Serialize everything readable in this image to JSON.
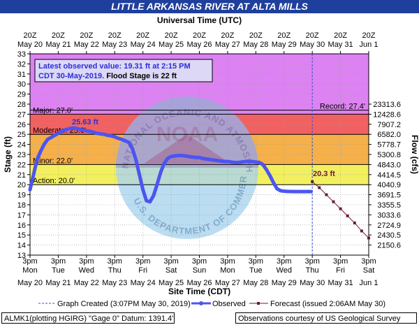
{
  "title": "LITTLE ARKANSAS RIVER AT ALTA MILLS",
  "top_axis_title": "Universal Time (UTC)",
  "bottom_axis_title": "Site Time (CDT)",
  "y_left_title": "Stage (ft)",
  "y_right_title": "Flow (cfs)",
  "info_box": {
    "line1": "Latest observed value: 19.31 ft at 2:15 PM",
    "line2": "CDT 30-May-2019.",
    "line2b": "Flood Stage is 22 ft"
  },
  "watermark_text_top": "NATIONAL OCEANIC AND ATMOSPHERIC ADMINISTRATION",
  "watermark_text_bottom": "U.S. DEPARTMENT OF COMMERCE",
  "watermark_logo_text": "NOAA",
  "thresholds": {
    "major": {
      "label": "Major: 27.0'",
      "value": 27.0
    },
    "moderate": {
      "label": "Moderate: 25.0'",
      "value": 25.0
    },
    "minor": {
      "label": "Minor: 22.0'",
      "value": 22.0
    },
    "action": {
      "label": "Action: 20.0'",
      "value": 20.0
    },
    "record": {
      "label": "Record: 27.4'",
      "value": 27.4
    }
  },
  "annotations": {
    "peak_label": "25.63 ft",
    "forecast_label": "20.3 ft"
  },
  "legend": {
    "graph_created": "Graph Created (3:07PM May 30, 2019)",
    "observed": "Observed",
    "forecast": "Forecast (issued 2:06AM May 30)"
  },
  "footer": {
    "left": "ALMK1(plotting HGIRG) \"Gage 0\" Datum: 1391.4'",
    "right": "Observations courtesy of US Geological Survey"
  },
  "colors": {
    "title_bg": "#1f3f9c",
    "major_band": "#dd82f2",
    "moderate_band": "#f26161",
    "minor_band": "#f5b04a",
    "action_band": "#f3f05f",
    "observed": "#4c55f0",
    "forecast": "#6a1b3f",
    "annotation_blue": "#2b2fd8",
    "annotation_forecast": "#6a1b3f"
  },
  "chart_data": {
    "type": "line",
    "y_ticks": [
      "13",
      "14",
      "15",
      "16",
      "17",
      "18",
      "19",
      "20",
      "21",
      "22",
      "23",
      "24",
      "25",
      "26",
      "27",
      "28",
      "29",
      "30",
      "31",
      "32",
      "33"
    ],
    "y_range": [
      13,
      33
    ],
    "flow_ticks": [
      {
        "stage": 28,
        "label": "23313.6"
      },
      {
        "stage": 27,
        "label": "12428.6"
      },
      {
        "stage": 26,
        "label": "7907.2"
      },
      {
        "stage": 25,
        "label": "6582.0"
      },
      {
        "stage": 24,
        "label": "5778.7"
      },
      {
        "stage": 23,
        "label": "5300.8"
      },
      {
        "stage": 22,
        "label": "4843.0"
      },
      {
        "stage": 21,
        "label": "4414.5"
      },
      {
        "stage": 20,
        "label": "4040.9"
      },
      {
        "stage": 19,
        "label": "3691.5"
      },
      {
        "stage": 18,
        "label": "3355.5"
      },
      {
        "stage": 17,
        "label": "3033.6"
      },
      {
        "stage": 16,
        "label": "2724.9"
      },
      {
        "stage": 15,
        "label": "2430.5"
      },
      {
        "stage": 14,
        "label": "2150.6"
      }
    ],
    "x_range_hours": [
      0,
      288
    ],
    "x_bottom_days": [
      "Mon",
      "Tue",
      "Wed",
      "Thu",
      "Fri",
      "Sat",
      "Sun",
      "Mon",
      "Tue",
      "Wed",
      "Thu",
      "Fri",
      "Sat"
    ],
    "x_bottom_dates": [
      "May 20",
      "May 21",
      "May 22",
      "May 23",
      "May 24",
      "May 25",
      "May 26",
      "May 27",
      "May 28",
      "May 29",
      "May 30",
      "May 31",
      "Jun 1"
    ],
    "x_bottom_time": "3pm",
    "x_top_time": "20Z",
    "x_top_dates": [
      "May 20",
      "May 21",
      "May 22",
      "May 23",
      "May 24",
      "May 25",
      "May 26",
      "May 27",
      "May 28",
      "May 29",
      "May 30",
      "May 31",
      "Jun 1"
    ],
    "now_hour": 240,
    "series": [
      {
        "name": "Observed",
        "x_hours": [
          0,
          2,
          4,
          6,
          9,
          12,
          15,
          18,
          21,
          24,
          27,
          30,
          33,
          36,
          39,
          42,
          45,
          48,
          51,
          54,
          57,
          60,
          63,
          66,
          69,
          72,
          75,
          78,
          81,
          84,
          87,
          90,
          93,
          96,
          99,
          102,
          105,
          108,
          111,
          114,
          117,
          120,
          123,
          126,
          129,
          132,
          135,
          138,
          141,
          144,
          147,
          150,
          153,
          156,
          159,
          162,
          165,
          168,
          171,
          174,
          177,
          180,
          183,
          186,
          189,
          192,
          195,
          198,
          201,
          204,
          207,
          210,
          213,
          216,
          219,
          222,
          225,
          228,
          231,
          234,
          237,
          239
        ],
        "y_stage": [
          19.5,
          20.5,
          21.5,
          22.5,
          23.3,
          24.0,
          24.5,
          24.7,
          24.9,
          25.1,
          25.3,
          25.45,
          25.55,
          25.63,
          25.6,
          25.5,
          25.4,
          25.35,
          25.3,
          25.2,
          25.1,
          25.05,
          25.0,
          24.9,
          24.85,
          24.75,
          24.6,
          24.5,
          24.35,
          24.2,
          23.6,
          22.5,
          21.0,
          19.5,
          18.4,
          18.3,
          18.9,
          20.0,
          21.2,
          22.1,
          22.6,
          22.8,
          22.85,
          22.9,
          22.9,
          22.85,
          22.8,
          22.75,
          22.7,
          22.7,
          22.6,
          22.55,
          22.5,
          22.45,
          22.4,
          22.35,
          22.3,
          22.3,
          22.25,
          22.2,
          22.2,
          22.25,
          22.3,
          22.3,
          22.3,
          22.25,
          22.2,
          22.0,
          21.5,
          20.9,
          20.2,
          19.6,
          19.4,
          19.35,
          19.33,
          19.32,
          19.31,
          19.31,
          19.31,
          19.31,
          19.31,
          19.31
        ]
      },
      {
        "name": "Forecast (issued 2:06AM May 30)",
        "x_hours": [
          240,
          246,
          252,
          258,
          264,
          270,
          276,
          282,
          288
        ],
        "y_stage": [
          20.3,
          19.7,
          19.0,
          18.3,
          17.6,
          16.9,
          16.2,
          15.4,
          14.7
        ]
      }
    ]
  }
}
